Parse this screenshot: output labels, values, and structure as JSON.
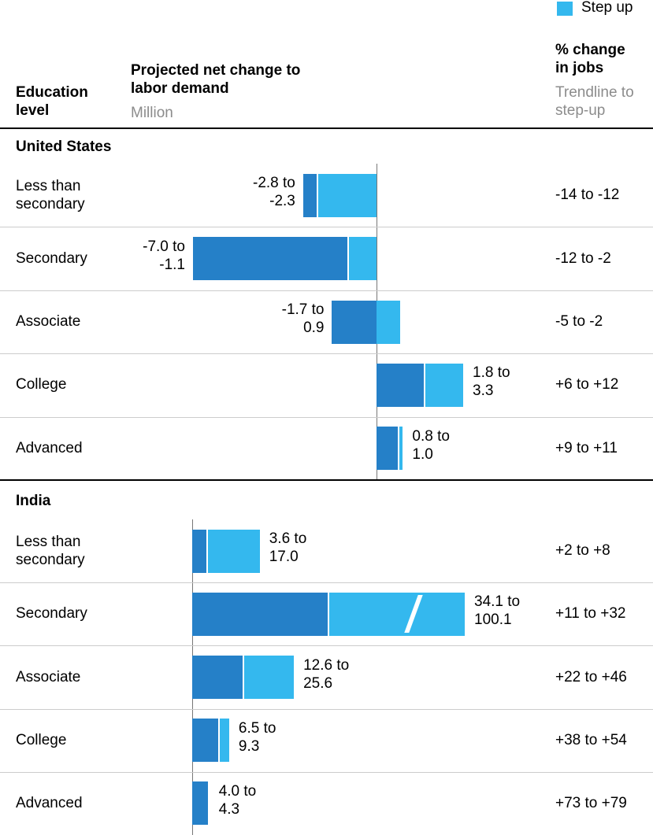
{
  "legend": {
    "label": "Step up",
    "color": "#34b8ee"
  },
  "headers": {
    "education": "Education level",
    "demand_title": "Projected net change to labor demand",
    "demand_unit": "Million",
    "pct_title": "% change in jobs",
    "pct_sub": "Trendline to step-up"
  },
  "chart_data": {
    "type": "range-bar",
    "trendline_color": "#2580c8",
    "step_up_color": "#34b8ee",
    "panels": [
      {
        "title": "United States",
        "xlim": [
          -7.03,
          3.36
        ],
        "categories": [
          "Less than secondary",
          "Secondary",
          "Associate",
          "College",
          "Advanced"
        ],
        "trendline": [
          -2.8,
          -7.0,
          -1.7,
          1.8,
          0.8
        ],
        "step_up": [
          -2.3,
          -1.1,
          0.9,
          3.3,
          1.0
        ],
        "value_labels": [
          [
            "-2.8 to",
            "-2.3"
          ],
          [
            "-7.0 to",
            "-1.1"
          ],
          [
            "-1.7 to",
            "0.9"
          ],
          [
            "1.8 to",
            "3.3"
          ],
          [
            "0.8 to",
            "1.0"
          ]
        ],
        "pct_change": [
          "-14 to -12",
          "-12 to -2",
          "-5 to -2",
          "+6 to +12",
          "+9 to +11"
        ]
      },
      {
        "title": "India",
        "xlim": [
          0,
          68.6
        ],
        "categories": [
          "Less than secondary",
          "Secondary",
          "Associate",
          "College",
          "Advanced"
        ],
        "trendline": [
          3.6,
          34.1,
          12.6,
          6.5,
          4.0
        ],
        "step_up": [
          17.0,
          100.1,
          25.6,
          9.3,
          4.3
        ],
        "value_labels": [
          [
            "3.6 to",
            "17.0"
          ],
          [
            "34.1 to",
            "100.1"
          ],
          [
            "12.6 to",
            "25.6"
          ],
          [
            "6.5 to",
            "9.3"
          ],
          [
            "4.0 to",
            "4.3"
          ]
        ],
        "pct_change": [
          "+2 to +8",
          "+11 to +32",
          "+22 to +46",
          "+38 to +54",
          "+73 to +79"
        ]
      }
    ]
  }
}
